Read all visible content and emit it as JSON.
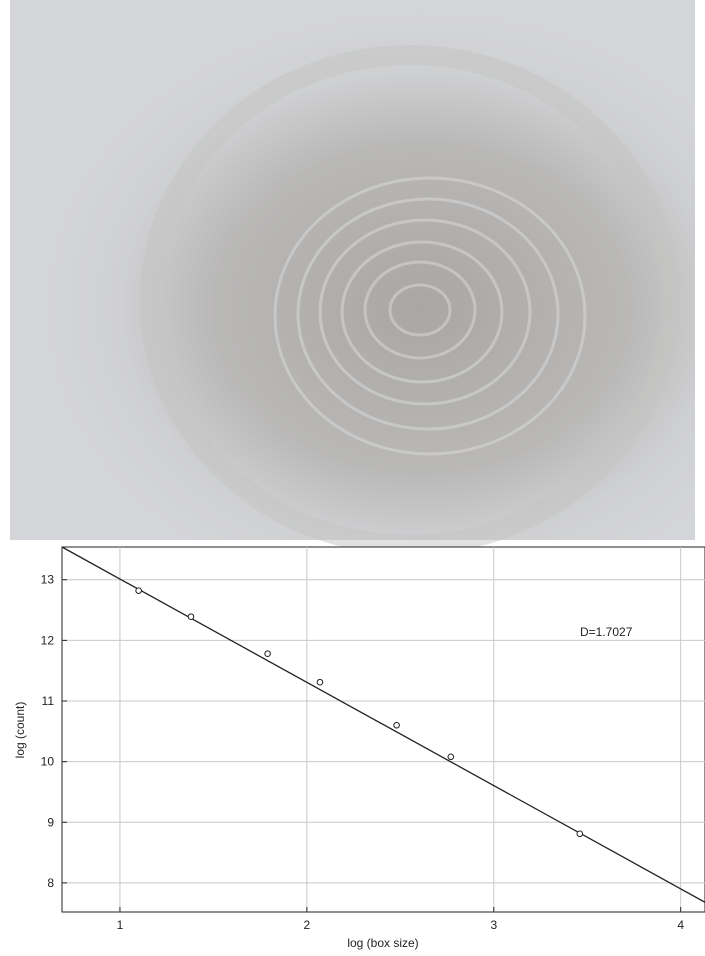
{
  "chart_data": {
    "type": "scatter",
    "xlabel": "log (box size)",
    "ylabel": "log (count)",
    "annotation": "D=1.7027",
    "xlim": [
      0.69,
      4.13
    ],
    "ylim": [
      7.52,
      13.54
    ],
    "xticks": [
      1,
      2,
      3,
      4
    ],
    "yticks": [
      8,
      9,
      10,
      11,
      12,
      13
    ],
    "grid": true,
    "color": "#222222",
    "points": {
      "x": [
        1.1,
        1.38,
        1.79,
        2.07,
        2.48,
        2.77,
        3.46
      ],
      "y": [
        12.82,
        12.39,
        11.78,
        11.31,
        10.6,
        10.08,
        8.81
      ]
    },
    "fit_line": {
      "x": [
        0.69,
        4.13
      ],
      "y": [
        13.54,
        7.68
      ]
    }
  }
}
